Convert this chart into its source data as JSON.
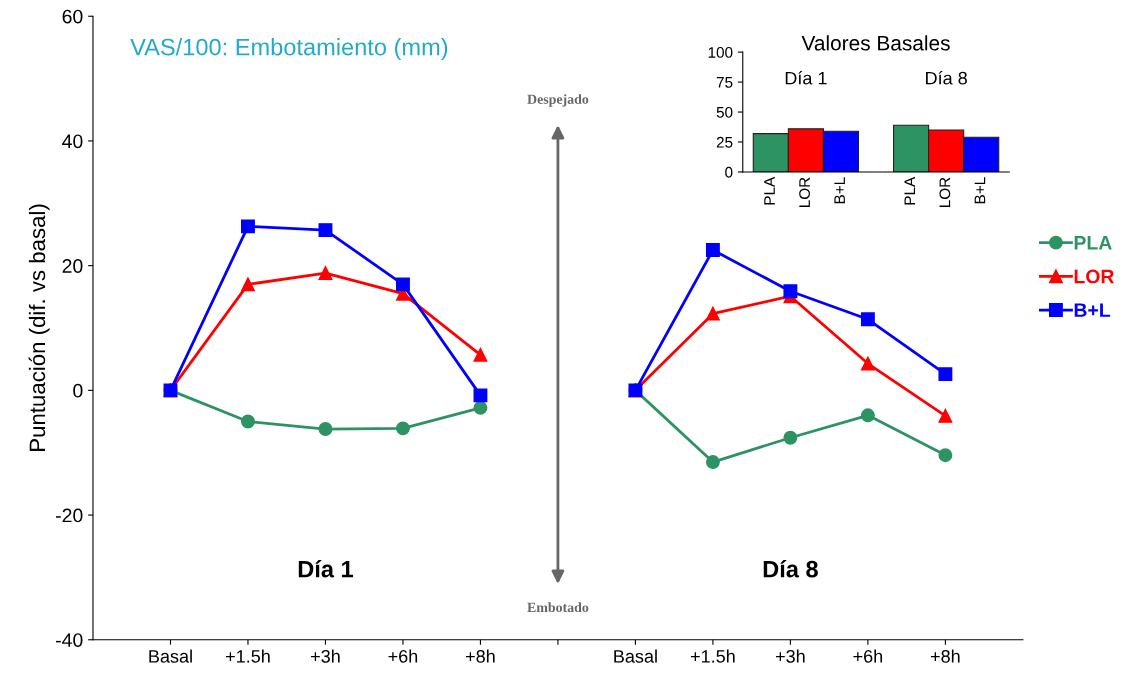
{
  "chart_data": [
    {
      "type": "line",
      "title": "VAS/100: Embotamiento (mm)",
      "ylabel": "Puntuación (dif. vs basal)",
      "categories": [
        "Basal",
        "+1.5h",
        "+3h",
        "+6h",
        "+8h",
        null,
        "Basal",
        "+1.5h",
        "+3h",
        "+6h",
        "+8h"
      ],
      "series": [
        {
          "name": "PLA",
          "color": "#2e9363",
          "marker": "circle",
          "values": [
            0,
            -5,
            -6.2,
            -6.1,
            -2.8,
            null,
            0,
            -11.5,
            -7.6,
            -4.0,
            -10.4
          ]
        },
        {
          "name": "LOR",
          "color": "#ff0000",
          "marker": "triangle",
          "values": [
            0,
            17,
            18.8,
            15.5,
            5.7,
            null,
            0,
            12.3,
            15.1,
            4.3,
            -4.1
          ]
        },
        {
          "name": "B+L",
          "color": "#0000ff",
          "marker": "square",
          "values": [
            0,
            26.3,
            25.7,
            17,
            -0.8,
            null,
            0,
            22.5,
            15.9,
            11.4,
            2.6
          ]
        }
      ],
      "ylim": [
        -40,
        60
      ],
      "yticks": [
        -40,
        -20,
        0,
        20,
        40,
        60
      ],
      "grid": false,
      "legend": "right",
      "annotations": [
        "Día 1",
        "Día 8",
        "Despejado",
        "Embotado"
      ]
    },
    {
      "type": "bar",
      "title": "Valores Basales",
      "categories": [
        "PLA",
        "LOR",
        "B+L",
        null,
        "PLA",
        "LOR",
        "B+L"
      ],
      "values": [
        32,
        36,
        34,
        null,
        39,
        35,
        29
      ],
      "colors": [
        "#2e9363",
        "#ff0000",
        "#0000ff",
        "#ffffff",
        "#2e9363",
        "#ff0000",
        "#0000ff"
      ],
      "ylim": [
        0,
        100
      ],
      "yticks": [
        0,
        25,
        50,
        75,
        100
      ],
      "grid": false,
      "annotations": [
        "Día 1",
        "Día 8"
      ]
    }
  ]
}
